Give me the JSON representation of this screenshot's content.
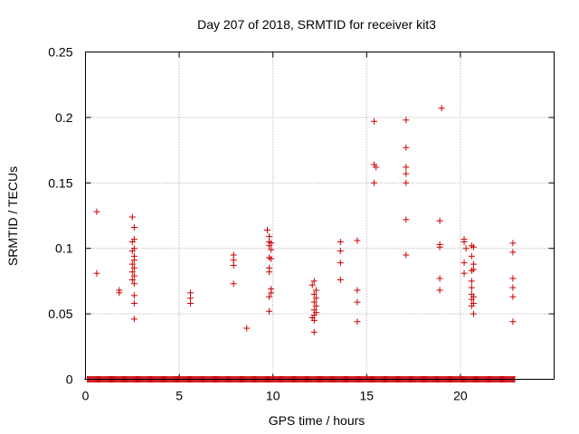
{
  "chart_data": {
    "type": "scatter",
    "title": "Day 207 of 2018, SRMTID for receiver kit3",
    "xlabel": "GPS time / hours",
    "ylabel": "SRMTID / TECUs",
    "xlim": [
      0,
      25
    ],
    "ylim": [
      0,
      0.25
    ],
    "x_ticks": [
      0,
      5,
      10,
      15,
      20
    ],
    "y_ticks": [
      0,
      0.05,
      0.1,
      0.15,
      0.2,
      0.25
    ],
    "x_tick_labels": [
      "0",
      "5",
      "10",
      "15",
      "20"
    ],
    "y_tick_labels": [
      "0",
      "0.05",
      "0.1",
      "0.15",
      "0.2",
      "0.25"
    ],
    "grid": true,
    "marker": "+",
    "color": "#cc0000",
    "zero_band": [
      0.1,
      22.9
    ],
    "points": [
      [
        0.6,
        0.128
      ],
      [
        0.6,
        0.081
      ],
      [
        1.8,
        0.068
      ],
      [
        1.8,
        0.066
      ],
      [
        2.5,
        0.124
      ],
      [
        2.6,
        0.116
      ],
      [
        2.6,
        0.107
      ],
      [
        2.5,
        0.105
      ],
      [
        2.6,
        0.1
      ],
      [
        2.5,
        0.098
      ],
      [
        2.6,
        0.094
      ],
      [
        2.6,
        0.091
      ],
      [
        2.5,
        0.088
      ],
      [
        2.6,
        0.085
      ],
      [
        2.5,
        0.082
      ],
      [
        2.6,
        0.079
      ],
      [
        2.5,
        0.076
      ],
      [
        2.6,
        0.073
      ],
      [
        2.6,
        0.064
      ],
      [
        2.6,
        0.058
      ],
      [
        2.6,
        0.046
      ],
      [
        5.6,
        0.066
      ],
      [
        5.6,
        0.062
      ],
      [
        5.6,
        0.058
      ],
      [
        7.9,
        0.095
      ],
      [
        7.9,
        0.091
      ],
      [
        7.9,
        0.087
      ],
      [
        7.9,
        0.073
      ],
      [
        8.6,
        0.039
      ],
      [
        9.7,
        0.114
      ],
      [
        9.8,
        0.109
      ],
      [
        9.8,
        0.105
      ],
      [
        9.8,
        0.102
      ],
      [
        9.9,
        0.104
      ],
      [
        9.9,
        0.099
      ],
      [
        9.8,
        0.093
      ],
      [
        9.9,
        0.092
      ],
      [
        9.8,
        0.085
      ],
      [
        9.8,
        0.082
      ],
      [
        9.9,
        0.069
      ],
      [
        9.9,
        0.066
      ],
      [
        9.8,
        0.063
      ],
      [
        9.8,
        0.052
      ],
      [
        12.1,
        0.072
      ],
      [
        12.2,
        0.075
      ],
      [
        12.3,
        0.068
      ],
      [
        12.2,
        0.065
      ],
      [
        12.3,
        0.062
      ],
      [
        12.2,
        0.059
      ],
      [
        12.3,
        0.056
      ],
      [
        12.2,
        0.053
      ],
      [
        12.3,
        0.051
      ],
      [
        12.2,
        0.049
      ],
      [
        12.1,
        0.047
      ],
      [
        12.2,
        0.045
      ],
      [
        12.2,
        0.036
      ],
      [
        13.6,
        0.105
      ],
      [
        13.6,
        0.098
      ],
      [
        13.6,
        0.089
      ],
      [
        13.6,
        0.076
      ],
      [
        14.5,
        0.106
      ],
      [
        14.5,
        0.068
      ],
      [
        14.5,
        0.059
      ],
      [
        14.5,
        0.044
      ],
      [
        15.4,
        0.197
      ],
      [
        15.4,
        0.164
      ],
      [
        15.5,
        0.162
      ],
      [
        15.4,
        0.15
      ],
      [
        17.1,
        0.198
      ],
      [
        17.1,
        0.177
      ],
      [
        17.1,
        0.162
      ],
      [
        17.1,
        0.157
      ],
      [
        17.1,
        0.15
      ],
      [
        17.1,
        0.122
      ],
      [
        17.1,
        0.095
      ],
      [
        19.0,
        0.207
      ],
      [
        18.9,
        0.121
      ],
      [
        18.9,
        0.103
      ],
      [
        18.9,
        0.101
      ],
      [
        18.9,
        0.077
      ],
      [
        18.9,
        0.068
      ],
      [
        20.2,
        0.107
      ],
      [
        20.2,
        0.105
      ],
      [
        20.3,
        0.1
      ],
      [
        20.2,
        0.089
      ],
      [
        20.2,
        0.081
      ],
      [
        20.6,
        0.102
      ],
      [
        20.7,
        0.101
      ],
      [
        20.6,
        0.094
      ],
      [
        20.7,
        0.088
      ],
      [
        20.7,
        0.084
      ],
      [
        20.6,
        0.083
      ],
      [
        20.6,
        0.075
      ],
      [
        20.6,
        0.07
      ],
      [
        20.6,
        0.065
      ],
      [
        20.7,
        0.063
      ],
      [
        20.6,
        0.061
      ],
      [
        20.7,
        0.058
      ],
      [
        20.6,
        0.056
      ],
      [
        20.7,
        0.05
      ],
      [
        22.8,
        0.104
      ],
      [
        22.8,
        0.097
      ],
      [
        22.8,
        0.077
      ],
      [
        22.8,
        0.07
      ],
      [
        22.8,
        0.063
      ],
      [
        22.8,
        0.044
      ]
    ]
  }
}
